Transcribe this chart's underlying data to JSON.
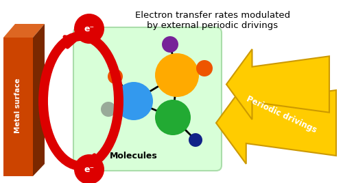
{
  "title_line1": "Electron transfer rates modulated",
  "title_line2": "by external periodic drivings",
  "metal_surface_label": "Metal surface",
  "molecules_label": "Molecules",
  "periodic_label": "Periodic drivings",
  "electron_label": "e⁻",
  "metal_color_front": "#cc4400",
  "metal_color_side": "#7a2800",
  "metal_color_top": "#dd6622",
  "box_fill_top": "#e8ffe8",
  "box_fill_bot": "#ccffcc",
  "box_edge_color": "#aaddaa",
  "arrow_color": "#dd0000",
  "lightning_color": "#ffcc00",
  "lightning_dark": "#cc9900",
  "atom_center_blue": "#3399ee",
  "atom_large_gold": "#ffaa00",
  "atom_green": "#22aa33",
  "atom_purple": "#772299",
  "atom_orange": "#ee5500",
  "atom_gray": "#99aa99",
  "atom_navy": "#112288",
  "bg_color": "#ffffff"
}
